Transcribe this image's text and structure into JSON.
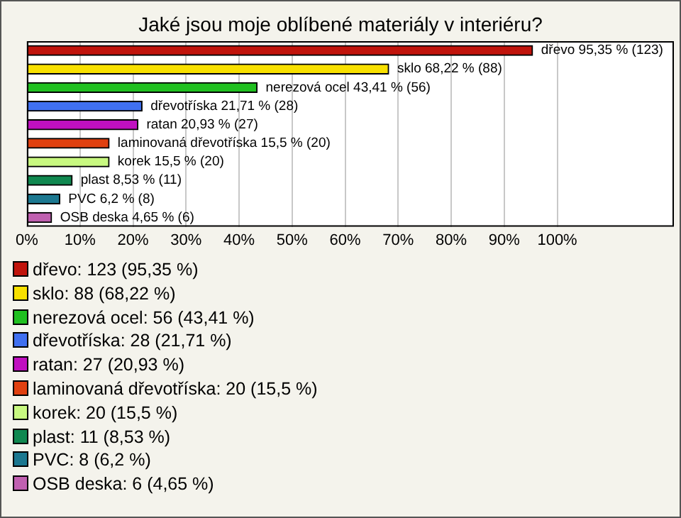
{
  "chart_data": {
    "type": "bar",
    "orientation": "horizontal",
    "title": "Jaké jsou moje oblíbené materiály v interiéru?",
    "categories": [
      null,
      null,
      null,
      null,
      null,
      null,
      null,
      null,
      null,
      null
    ],
    "values": [
      95.35,
      68.22,
      43.41,
      21.71,
      20.93,
      15.5,
      15.5,
      8.53,
      6.2,
      4.65
    ],
    "colors": [
      "#c0140c",
      "#f8e000",
      "#20c020",
      "#4070f0",
      "#c010c0",
      "#e04010",
      "#c8f880",
      "#108850",
      "#1c7890",
      "#c060b0"
    ],
    "value_labels": [
      "dřevo 95,35 % (123)",
      "sklo 68,22 % (88)",
      "nerezová ocel 43,41 % (56)",
      "dřevotříska 21,71 % (28)",
      "ratan 20,93 % (27)",
      "laminovaná dřevotříska 15,5 % (20)",
      "korek 15,5 % (20)",
      "plast 8,53 % (11)",
      "PVC 6,2 % (8)",
      "OSB deska 4,65 % (6)"
    ],
    "xlim": [
      0,
      122
    ],
    "xticks": [
      {
        "value": 0,
        "label": "0%"
      },
      {
        "value": 10,
        "label": "10%"
      },
      {
        "value": 20,
        "label": "20%"
      },
      {
        "value": 30,
        "label": "30%"
      },
      {
        "value": 40,
        "label": "40%"
      },
      {
        "value": 50,
        "label": "50%"
      },
      {
        "value": 60,
        "label": "60%"
      },
      {
        "value": 70,
        "label": "70%"
      },
      {
        "value": 80,
        "label": "80%"
      },
      {
        "value": 90,
        "label": "90%"
      },
      {
        "value": 100,
        "label": "100%"
      }
    ],
    "grid": "x",
    "tick_labels": "x",
    "annotations": [
      "dřevo: 123 (95,35 %)",
      "sklo: 88 (68,22 %)",
      "nerezová ocel: 56 (43,41 %)",
      "dřevotříska: 28 (21,71 %)",
      "ratan: 27 (20,93 %)",
      "laminovaná dřevotříska: 20 (15,5 %)",
      "korek: 20 (15,5 %)",
      "plast: 11 (8,53 %)",
      "PVC: 8 (6,2 %)",
      "OSB deska: 6 (4,65 %)"
    ]
  }
}
